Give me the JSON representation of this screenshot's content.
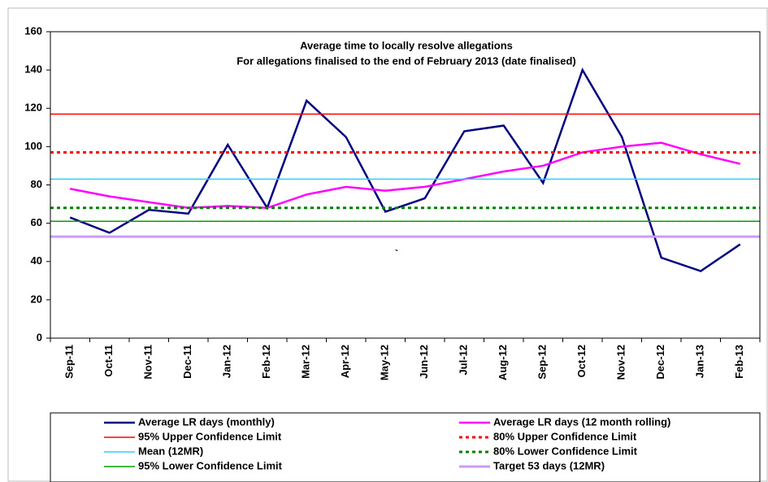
{
  "chart_data": {
    "type": "line",
    "title": "Average time to locally resolve allegations",
    "subtitle": "For allegations finalised to the end of February 2013 (date finalised)",
    "annotation": "`",
    "categories": [
      "Sep-11",
      "Oct-11",
      "Nov-11",
      "Dec-11",
      "Jan-12",
      "Feb-12",
      "Mar-12",
      "Apr-12",
      "May-12",
      "Jun-12",
      "Jul-12",
      "Aug-12",
      "Sep-12",
      "Oct-12",
      "Nov-12",
      "Dec-12",
      "Jan-13",
      "Feb-13"
    ],
    "ylim": [
      0,
      160
    ],
    "yticks": [
      0,
      20,
      40,
      60,
      80,
      100,
      120,
      140,
      160
    ],
    "grid": false,
    "series": [
      {
        "name": "Average LR days (monthly)",
        "color": "#000080",
        "width": 2.5,
        "dash": false,
        "values": [
          63,
          55,
          67,
          65,
          101,
          68,
          124,
          105,
          66,
          73,
          108,
          111,
          81,
          140,
          105,
          42,
          35,
          49
        ]
      },
      {
        "name": "Average LR days (12 month rolling)",
        "color": "#ff00ff",
        "width": 2.5,
        "dash": false,
        "values": [
          78,
          74,
          71,
          68,
          69,
          68,
          75,
          79,
          77,
          79,
          83,
          87,
          90,
          97,
          100,
          102,
          96,
          91
        ]
      },
      {
        "name": "95% Upper Confidence Limit",
        "color": "#ff0000",
        "width": 1.5,
        "dash": false,
        "value": 117
      },
      {
        "name": "80% Upper Confidence Limit",
        "color": "#ff0000",
        "width": 3,
        "dash": true,
        "value": 97
      },
      {
        "name": "Mean (12MR)",
        "color": "#33ccff",
        "width": 1.5,
        "dash": false,
        "value": 83
      },
      {
        "name": "80% Lower Confidence Limit",
        "color": "#008000",
        "width": 3,
        "dash": true,
        "value": 68
      },
      {
        "name": "95% Lower Confidence Limit",
        "color": "#00a000",
        "width": 1.5,
        "dash": false,
        "value": 61
      },
      {
        "name": "Target 53 days (12MR)",
        "color": "#cc99ff",
        "width": 3,
        "dash": false,
        "value": 53
      }
    ]
  }
}
